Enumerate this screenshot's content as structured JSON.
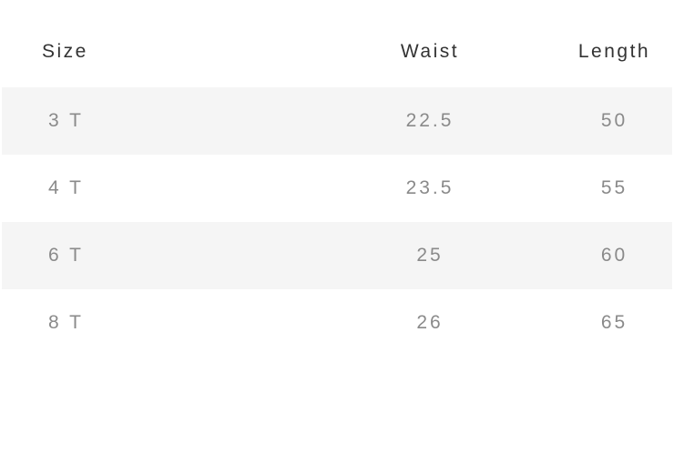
{
  "table": {
    "header": [
      "Size",
      "Waist",
      "Length"
    ],
    "rows": [
      [
        "3 T",
        "22.5",
        "50"
      ],
      [
        "4 T",
        "23.5",
        "55"
      ],
      [
        "6 T",
        "25",
        "60"
      ],
      [
        "8 T",
        "26",
        "65"
      ]
    ]
  }
}
